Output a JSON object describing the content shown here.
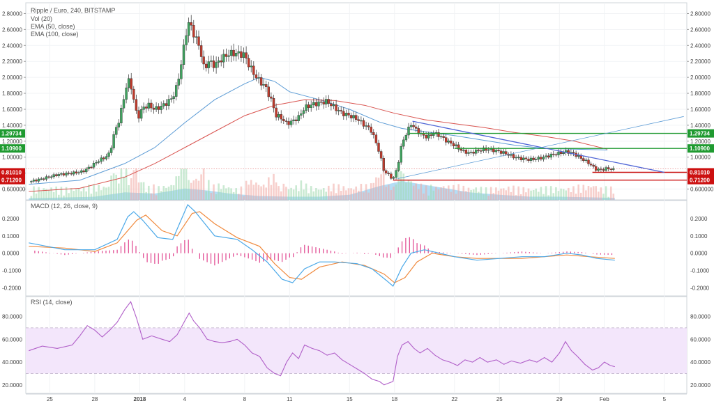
{
  "header": {
    "symbol": "Ripple / Euro, 240, BITSTAMP",
    "studies": [
      "Vol (20)",
      "EMA (50, close)",
      "EMA (100, close)"
    ]
  },
  "colors": {
    "up": "#3fa35f",
    "down": "#c0392b",
    "ema50": "#5b9bd5",
    "ema100": "#d9534f",
    "trend": "#4e64d6",
    "level_green": "#1f9a30",
    "level_red": "#cc1010",
    "vol_area": "#8ecbf0",
    "macd": "#4aa8e8",
    "signal": "#f08a3e",
    "hist": "#e0448e",
    "rsi": "#b05ec8",
    "rsi_band": "#f3e6fb"
  },
  "chart_data": [
    {
      "type": "candlestick",
      "title": "Ripple / Euro, 240, BITSTAMP",
      "ylim": [
        0.5,
        2.9
      ],
      "y_ticks": [
        "0.600000",
        "0.800000",
        "1.00000",
        "1.20000",
        "1.40000",
        "1.60000",
        "1.80000",
        "2.00000",
        "2.20000",
        "2.40000",
        "2.60000",
        "2.80000"
      ],
      "y_tick_values": [
        0.6,
        0.8,
        1.0,
        1.2,
        1.4,
        1.6,
        1.8,
        2.0,
        2.2,
        2.4,
        2.6,
        2.8
      ],
      "x_ticks": [
        "25",
        "28",
        "2018",
        "4",
        "8",
        "11",
        "15",
        "18",
        "22",
        "25",
        "29",
        "Feb",
        "5"
      ],
      "x_tick_days": [
        -6,
        -3,
        0,
        3,
        7,
        10,
        14,
        17,
        21,
        24,
        28,
        31,
        35
      ],
      "xlim_days": [
        -7.6,
        36.5
      ],
      "close_path": [
        [
          -7.4,
          0.69
        ],
        [
          -6.5,
          0.73
        ],
        [
          -5.5,
          0.78
        ],
        [
          -4.5,
          0.8
        ],
        [
          -3.8,
          0.82
        ],
        [
          -3.3,
          0.88
        ],
        [
          -2.8,
          0.95
        ],
        [
          -2.3,
          1.0
        ],
        [
          -2.0,
          1.05
        ],
        [
          -1.7,
          1.3
        ],
        [
          -1.4,
          1.45
        ],
        [
          -1.1,
          1.7
        ],
        [
          -0.8,
          1.98
        ],
        [
          -0.5,
          1.85
        ],
        [
          -0.3,
          1.6
        ],
        [
          -0.1,
          1.5
        ],
        [
          0.2,
          1.62
        ],
        [
          0.6,
          1.65
        ],
        [
          1.0,
          1.6
        ],
        [
          1.4,
          1.63
        ],
        [
          1.8,
          1.68
        ],
        [
          2.2,
          1.75
        ],
        [
          2.5,
          1.9
        ],
        [
          2.8,
          2.2
        ],
        [
          3.0,
          2.45
        ],
        [
          3.2,
          2.68
        ],
        [
          3.4,
          2.65
        ],
        [
          3.7,
          2.5
        ],
        [
          4.0,
          2.38
        ],
        [
          4.3,
          2.1
        ],
        [
          4.6,
          2.2
        ],
        [
          5.0,
          2.15
        ],
        [
          5.5,
          2.24
        ],
        [
          6.0,
          2.3
        ],
        [
          6.5,
          2.3
        ],
        [
          7.0,
          2.28
        ],
        [
          7.3,
          2.15
        ],
        [
          7.7,
          2.02
        ],
        [
          8.0,
          1.95
        ],
        [
          8.4,
          1.88
        ],
        [
          8.8,
          1.7
        ],
        [
          9.1,
          1.52
        ],
        [
          9.4,
          1.5
        ],
        [
          9.8,
          1.42
        ],
        [
          10.2,
          1.45
        ],
        [
          10.6,
          1.5
        ],
        [
          11.0,
          1.62
        ],
        [
          11.5,
          1.66
        ],
        [
          12.0,
          1.68
        ],
        [
          12.5,
          1.7
        ],
        [
          13.0,
          1.62
        ],
        [
          13.5,
          1.55
        ],
        [
          14.0,
          1.52
        ],
        [
          14.5,
          1.48
        ],
        [
          15.0,
          1.4
        ],
        [
          15.4,
          1.35
        ],
        [
          15.7,
          1.22
        ],
        [
          16.0,
          1.05
        ],
        [
          16.3,
          0.82
        ],
        [
          16.6,
          0.78
        ],
        [
          16.9,
          0.72
        ],
        [
          17.2,
          0.88
        ],
        [
          17.5,
          1.18
        ],
        [
          17.8,
          1.3
        ],
        [
          18.1,
          1.42
        ],
        [
          18.4,
          1.35
        ],
        [
          18.8,
          1.28
        ],
        [
          19.2,
          1.25
        ],
        [
          19.6,
          1.3
        ],
        [
          20.0,
          1.27
        ],
        [
          20.5,
          1.2
        ],
        [
          21.0,
          1.15
        ],
        [
          21.5,
          1.08
        ],
        [
          22.0,
          1.05
        ],
        [
          22.5,
          1.08
        ],
        [
          23.0,
          1.1
        ],
        [
          23.5,
          1.09
        ],
        [
          24.0,
          1.07
        ],
        [
          24.5,
          1.04
        ],
        [
          25.0,
          1.0
        ],
        [
          25.5,
          0.98
        ],
        [
          26.0,
          0.97
        ],
        [
          26.5,
          0.98
        ],
        [
          27.0,
          1.0
        ],
        [
          27.5,
          1.03
        ],
        [
          28.0,
          1.05
        ],
        [
          28.5,
          1.07
        ],
        [
          29.0,
          1.04
        ],
        [
          29.5,
          0.98
        ],
        [
          30.0,
          0.92
        ],
        [
          30.4,
          0.85
        ],
        [
          30.8,
          0.84
        ],
        [
          31.2,
          0.86
        ],
        [
          31.7,
          0.84
        ]
      ],
      "ema50_path": [
        [
          -7.4,
          0.66
        ],
        [
          -4.0,
          0.71
        ],
        [
          -1.0,
          0.92
        ],
        [
          1.0,
          1.12
        ],
        [
          3.0,
          1.43
        ],
        [
          5.0,
          1.72
        ],
        [
          7.0,
          1.92
        ],
        [
          8.0,
          2.0
        ],
        [
          9.0,
          1.95
        ],
        [
          10.0,
          1.82
        ],
        [
          12.0,
          1.72
        ],
        [
          14.0,
          1.6
        ],
        [
          16.0,
          1.44
        ],
        [
          17.5,
          1.36
        ],
        [
          19.0,
          1.32
        ],
        [
          21.0,
          1.27
        ],
        [
          23.0,
          1.21
        ],
        [
          25.0,
          1.15
        ],
        [
          27.0,
          1.11
        ],
        [
          29.0,
          1.1
        ],
        [
          31.2,
          1.09
        ]
      ],
      "ema100_path": [
        [
          -7.4,
          0.57
        ],
        [
          -4.0,
          0.61
        ],
        [
          -1.0,
          0.75
        ],
        [
          1.0,
          0.92
        ],
        [
          3.0,
          1.12
        ],
        [
          5.0,
          1.32
        ],
        [
          7.0,
          1.52
        ],
        [
          9.0,
          1.65
        ],
        [
          11.0,
          1.72
        ],
        [
          13.0,
          1.71
        ],
        [
          15.0,
          1.65
        ],
        [
          17.0,
          1.55
        ],
        [
          19.0,
          1.47
        ],
        [
          21.0,
          1.42
        ],
        [
          23.0,
          1.37
        ],
        [
          25.0,
          1.31
        ],
        [
          27.0,
          1.26
        ],
        [
          29.0,
          1.2
        ],
        [
          31.2,
          1.1
        ]
      ],
      "trendlines": [
        {
          "from": [
            18.2,
            1.45
          ],
          "to": [
            35.0,
            0.81
          ],
          "color": "trend"
        },
        {
          "from": [
            17.2,
            0.73
          ],
          "to": [
            36.3,
            1.51
          ],
          "color": "ema50"
        }
      ],
      "levels": [
        {
          "label": "1.29734",
          "value": 1.29734,
          "from_day": 18.0,
          "kind": "green"
        },
        {
          "label": "1.10900",
          "value": 1.109,
          "from_day": 21.0,
          "kind": "green"
        },
        {
          "label": "0.81010",
          "value": 0.8101,
          "from_day": 30.2,
          "kind": "red"
        },
        {
          "label": "0.71200",
          "value": 0.712,
          "from_day": 16.9,
          "kind": "red"
        }
      ],
      "last_price": 0.8515,
      "volume_area_path": [
        [
          -7.4,
          0.025
        ],
        [
          -3.0,
          0.05
        ],
        [
          -1.0,
          0.12
        ],
        [
          1.0,
          0.1
        ],
        [
          3.0,
          0.18
        ],
        [
          4.5,
          0.15
        ],
        [
          6.0,
          0.1
        ],
        [
          8.0,
          0.06
        ],
        [
          10.0,
          0.05
        ],
        [
          12.0,
          0.05
        ],
        [
          14.0,
          0.08
        ],
        [
          16.0,
          0.22
        ],
        [
          17.5,
          0.3
        ],
        [
          18.5,
          0.26
        ],
        [
          20.0,
          0.2
        ],
        [
          22.0,
          0.12
        ],
        [
          24.0,
          0.08
        ],
        [
          26.0,
          0.05
        ],
        [
          28.0,
          0.05
        ],
        [
          30.0,
          0.04
        ],
        [
          31.7,
          0.03
        ]
      ]
    },
    {
      "type": "line",
      "title": "MACD (12, 26, close, 9)",
      "ylim": [
        -0.23,
        0.28
      ],
      "y_ticks": [
        "0.2000",
        "0.1000",
        "0.0000",
        "-0.1000",
        "-0.2000"
      ],
      "y_tick_values": [
        0.2,
        0.1,
        0.0,
        -0.1,
        -0.2
      ],
      "macd_path": [
        [
          -7.4,
          0.06
        ],
        [
          -5.0,
          0.02
        ],
        [
          -3.0,
          0.02
        ],
        [
          -1.5,
          0.08
        ],
        [
          -0.8,
          0.21
        ],
        [
          -0.4,
          0.24
        ],
        [
          0.2,
          0.19
        ],
        [
          1.2,
          0.09
        ],
        [
          2.2,
          0.08
        ],
        [
          2.8,
          0.2
        ],
        [
          3.2,
          0.28
        ],
        [
          3.7,
          0.24
        ],
        [
          5.0,
          0.1
        ],
        [
          6.5,
          0.08
        ],
        [
          7.5,
          0.02
        ],
        [
          8.5,
          -0.05
        ],
        [
          9.5,
          -0.15
        ],
        [
          10.2,
          -0.17
        ],
        [
          11.0,
          -0.09
        ],
        [
          12.0,
          -0.05
        ],
        [
          13.0,
          -0.05
        ],
        [
          14.5,
          -0.06
        ],
        [
          15.5,
          -0.09
        ],
        [
          16.5,
          -0.16
        ],
        [
          16.9,
          -0.19
        ],
        [
          17.5,
          -0.08
        ],
        [
          18.1,
          0.0
        ],
        [
          19.0,
          0.02
        ],
        [
          20.0,
          0.0
        ],
        [
          21.0,
          -0.02
        ],
        [
          22.5,
          -0.04
        ],
        [
          24.0,
          -0.03
        ],
        [
          25.5,
          -0.02
        ],
        [
          27.0,
          -0.02
        ],
        [
          28.5,
          0.0
        ],
        [
          29.5,
          -0.01
        ],
        [
          30.5,
          -0.03
        ],
        [
          31.7,
          -0.04
        ]
      ],
      "signal_path": [
        [
          -7.4,
          0.04
        ],
        [
          -5.0,
          0.03
        ],
        [
          -3.0,
          0.01
        ],
        [
          -1.5,
          0.06
        ],
        [
          -0.2,
          0.19
        ],
        [
          0.4,
          0.22
        ],
        [
          1.5,
          0.13
        ],
        [
          2.5,
          0.1
        ],
        [
          3.5,
          0.23
        ],
        [
          4.0,
          0.24
        ],
        [
          5.0,
          0.17
        ],
        [
          6.5,
          0.09
        ],
        [
          8.0,
          0.04
        ],
        [
          9.0,
          -0.06
        ],
        [
          10.0,
          -0.14
        ],
        [
          10.8,
          -0.15
        ],
        [
          12.0,
          -0.08
        ],
        [
          13.5,
          -0.05
        ],
        [
          15.0,
          -0.07
        ],
        [
          16.3,
          -0.12
        ],
        [
          17.0,
          -0.17
        ],
        [
          17.7,
          -0.14
        ],
        [
          18.5,
          -0.05
        ],
        [
          19.5,
          0.0
        ],
        [
          21.0,
          -0.02
        ],
        [
          22.5,
          -0.03
        ],
        [
          24.0,
          -0.03
        ],
        [
          25.5,
          -0.03
        ],
        [
          27.0,
          -0.02
        ],
        [
          28.5,
          -0.01
        ],
        [
          30.0,
          -0.02
        ],
        [
          31.7,
          -0.03
        ]
      ],
      "histogram_days": [
        -7.0,
        31.5
      ],
      "histogram_step_days": 0.25
    },
    {
      "type": "line",
      "title": "RSI (14, close)",
      "ylim": [
        15,
        95
      ],
      "y_ticks": [
        "80.0000",
        "60.0000",
        "40.0000",
        "20.0000"
      ],
      "y_tick_values": [
        80,
        60,
        40,
        20
      ],
      "bands": [
        30,
        70
      ],
      "rsi_path": [
        [
          -7.4,
          50
        ],
        [
          -6.5,
          54
        ],
        [
          -5.5,
          52
        ],
        [
          -4.5,
          55
        ],
        [
          -4.0,
          63
        ],
        [
          -3.5,
          72
        ],
        [
          -3.0,
          68
        ],
        [
          -2.5,
          62
        ],
        [
          -2.0,
          68
        ],
        [
          -1.5,
          75
        ],
        [
          -1.0,
          86
        ],
        [
          -0.6,
          93
        ],
        [
          -0.2,
          78
        ],
        [
          0.2,
          60
        ],
        [
          0.8,
          63
        ],
        [
          1.5,
          60
        ],
        [
          2.0,
          58
        ],
        [
          2.5,
          64
        ],
        [
          3.0,
          76
        ],
        [
          3.3,
          83
        ],
        [
          3.6,
          76
        ],
        [
          4.0,
          70
        ],
        [
          4.5,
          60
        ],
        [
          5.0,
          58
        ],
        [
          5.5,
          57
        ],
        [
          6.0,
          58
        ],
        [
          6.5,
          60
        ],
        [
          7.0,
          55
        ],
        [
          7.5,
          48
        ],
        [
          8.0,
          45
        ],
        [
          8.5,
          35
        ],
        [
          9.0,
          30
        ],
        [
          9.4,
          28
        ],
        [
          9.8,
          40
        ],
        [
          10.2,
          48
        ],
        [
          10.6,
          43
        ],
        [
          11.0,
          55
        ],
        [
          11.5,
          52
        ],
        [
          12.0,
          50
        ],
        [
          12.5,
          46
        ],
        [
          13.0,
          48
        ],
        [
          13.5,
          42
        ],
        [
          14.0,
          38
        ],
        [
          14.5,
          34
        ],
        [
          15.0,
          30
        ],
        [
          15.5,
          25
        ],
        [
          16.0,
          23
        ],
        [
          16.3,
          20
        ],
        [
          16.9,
          23
        ],
        [
          17.2,
          45
        ],
        [
          17.5,
          55
        ],
        [
          17.9,
          58
        ],
        [
          18.3,
          52
        ],
        [
          18.7,
          48
        ],
        [
          19.2,
          52
        ],
        [
          19.7,
          46
        ],
        [
          20.2,
          42
        ],
        [
          20.7,
          40
        ],
        [
          21.2,
          37
        ],
        [
          21.7,
          42
        ],
        [
          22.2,
          40
        ],
        [
          22.7,
          44
        ],
        [
          23.2,
          40
        ],
        [
          23.8,
          42
        ],
        [
          24.3,
          38
        ],
        [
          24.8,
          41
        ],
        [
          25.4,
          39
        ],
        [
          26.0,
          42
        ],
        [
          26.5,
          40
        ],
        [
          27.0,
          44
        ],
        [
          27.5,
          40
        ],
        [
          28.0,
          48
        ],
        [
          28.4,
          58
        ],
        [
          28.8,
          50
        ],
        [
          29.2,
          45
        ],
        [
          29.7,
          38
        ],
        [
          30.2,
          33
        ],
        [
          30.6,
          35
        ],
        [
          31.0,
          40
        ],
        [
          31.4,
          37
        ],
        [
          31.7,
          36
        ]
      ]
    }
  ]
}
